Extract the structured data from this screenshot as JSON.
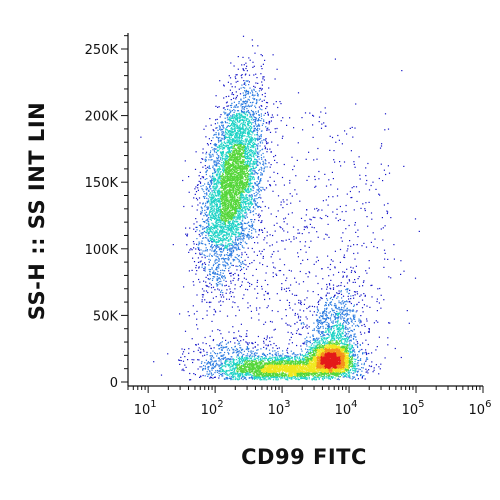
{
  "chart_data": {
    "type": "scatter",
    "subtype": "flow-cytometry-density-dot-plot",
    "xlabel": "CD99 FITC",
    "ylabel": "SS-H :: SS INT LIN",
    "x_scale": "log",
    "xlim": [
      5,
      1000000
    ],
    "ylim": [
      -3000,
      262000
    ],
    "x_ticks": [
      {
        "value": 10,
        "label": "10",
        "exp": "1"
      },
      {
        "value": 100,
        "label": "10",
        "exp": "2"
      },
      {
        "value": 1000,
        "label": "10",
        "exp": "3"
      },
      {
        "value": 10000,
        "label": "10",
        "exp": "4"
      },
      {
        "value": 100000,
        "label": "10",
        "exp": "5"
      },
      {
        "value": 1000000,
        "label": "10",
        "exp": "6"
      }
    ],
    "y_ticks": [
      {
        "value": 0,
        "label": "0"
      },
      {
        "value": 50000,
        "label": "50K"
      },
      {
        "value": 100000,
        "label": "100K"
      },
      {
        "value": 150000,
        "label": "150K"
      },
      {
        "value": 200000,
        "label": "200K"
      },
      {
        "value": 250000,
        "label": "250K"
      }
    ],
    "density_colormap": [
      "#1414c8",
      "#2a7ae0",
      "#1fd3c6",
      "#55d63a",
      "#f0e81e",
      "#f5921b",
      "#e41a1a"
    ],
    "populations": [
      {
        "center_x": 180,
        "center_y": 150000,
        "spread_log_x": 0.22,
        "spread_y": 30000,
        "tilt": 0.5,
        "count": 5200
      },
      {
        "center_x": 5500,
        "center_y": 18000,
        "spread_log_x": 0.16,
        "spread_y": 6000,
        "tilt": 0.0,
        "count": 2400
      },
      {
        "center_x": 1200,
        "center_y": 10000,
        "spread_log_x": 0.45,
        "spread_y": 5000,
        "tilt": 0.0,
        "count": 2800
      },
      {
        "center_x": 200,
        "center_y": 15000,
        "spread_log_x": 0.35,
        "spread_y": 9000,
        "tilt": 0.0,
        "count": 600
      },
      {
        "center_x": 6000,
        "center_y": 40000,
        "spread_log_x": 0.2,
        "spread_y": 15000,
        "tilt": 0.3,
        "count": 800
      },
      {
        "center_x": 2000,
        "center_y": 80000,
        "spread_log_x": 0.7,
        "spread_y": 50000,
        "tilt": 0.0,
        "count": 500
      }
    ],
    "grid": false,
    "legend": "none"
  }
}
